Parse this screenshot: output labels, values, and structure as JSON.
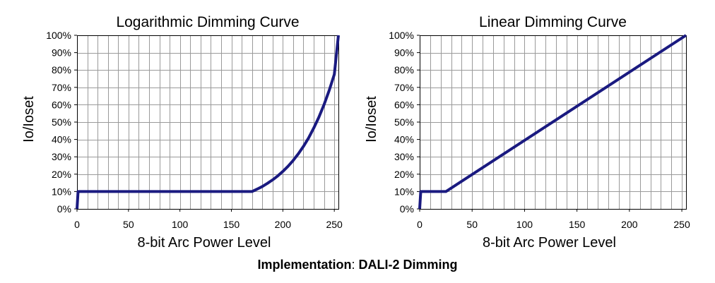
{
  "caption": {
    "emphasis": "Implementation",
    "separator": ": ",
    "rest": "DALI-2 Dimming"
  },
  "chart_data": [
    {
      "type": "line",
      "title": "Logarithmic Dimming Curve",
      "xlabel": "8-bit Arc Power Level",
      "ylabel": "Io/Ioset",
      "xlim": [
        0,
        254
      ],
      "ylim": [
        0,
        100
      ],
      "xticks": [
        0,
        50,
        100,
        150,
        200,
        250
      ],
      "xtick_labels": [
        "0",
        "50",
        "100",
        "150",
        "200",
        "250"
      ],
      "yticks": [
        0,
        10,
        20,
        30,
        40,
        50,
        60,
        70,
        80,
        90,
        100
      ],
      "ytick_labels": [
        "0%",
        "10%",
        "20%",
        "30%",
        "40%",
        "50%",
        "60%",
        "70%",
        "80%",
        "90%",
        "100%"
      ],
      "x_minor_step": 10,
      "grid": true,
      "line_color": "#1a1a80",
      "series": [
        {
          "x": [
            0,
            1,
            170,
            175,
            180,
            185,
            190,
            195,
            200,
            205,
            210,
            215,
            220,
            225,
            230,
            235,
            240,
            245,
            250,
            254
          ],
          "y": [
            0,
            10,
            10,
            11.4,
            12.9,
            14.7,
            16.7,
            19.0,
            21.6,
            24.5,
            27.9,
            31.7,
            36.0,
            40.9,
            46.5,
            52.8,
            60.0,
            68.2,
            77.5,
            100
          ]
        }
      ]
    },
    {
      "type": "line",
      "title": "Linear Dimming Curve",
      "xlabel": "8-bit Arc Power Level",
      "ylabel": "Io/Ioset",
      "xlim": [
        0,
        254
      ],
      "ylim": [
        0,
        100
      ],
      "xticks": [
        0,
        50,
        100,
        150,
        200,
        250
      ],
      "xtick_labels": [
        "0",
        "50",
        "100",
        "150",
        "200",
        "250"
      ],
      "yticks": [
        0,
        10,
        20,
        30,
        40,
        50,
        60,
        70,
        80,
        90,
        100
      ],
      "ytick_labels": [
        "0%",
        "10%",
        "20%",
        "30%",
        "40%",
        "50%",
        "60%",
        "70%",
        "80%",
        "90%",
        "100%"
      ],
      "x_minor_step": 10,
      "grid": true,
      "line_color": "#1a1a80",
      "series": [
        {
          "x": [
            0,
            1,
            25,
            254
          ],
          "y": [
            0,
            10,
            10,
            100
          ]
        }
      ]
    }
  ]
}
